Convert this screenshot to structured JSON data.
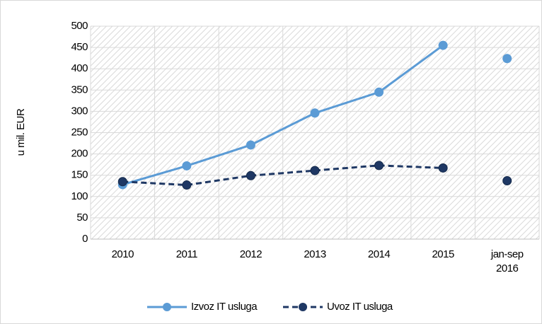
{
  "chart_data": {
    "type": "line",
    "y_axis_label": "u mil. EUR",
    "categories": [
      "2010",
      "2011",
      "2012",
      "2013",
      "2014",
      "2015",
      "jan-sep 2016"
    ],
    "series": [
      {
        "name": "Izvoz IT usluga",
        "color": "#5b9bd5",
        "dashed": false,
        "last_point_unconnected": true,
        "values": [
          128,
          172,
          221,
          296,
          345,
          455,
          424
        ]
      },
      {
        "name": "Uvoz IT usluga",
        "color": "#1f3864",
        "dashed": true,
        "last_point_unconnected": true,
        "values": [
          135,
          127,
          149,
          161,
          173,
          167,
          137
        ]
      }
    ],
    "ylim": [
      0,
      500
    ],
    "yticks": [
      0,
      50,
      100,
      150,
      200,
      250,
      300,
      350,
      400,
      450,
      500
    ],
    "grid": true,
    "legend": "bottom"
  }
}
